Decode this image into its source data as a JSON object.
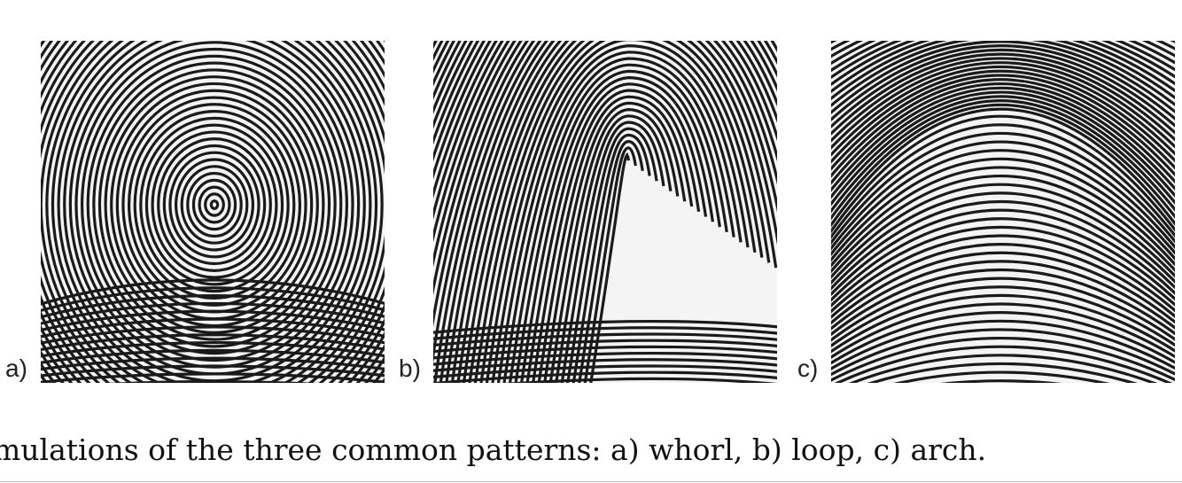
{
  "figure": {
    "panels": [
      {
        "label": "a)",
        "pattern": "whorl"
      },
      {
        "label": "b)",
        "pattern": "loop"
      },
      {
        "label": "c)",
        "pattern": "arch"
      }
    ],
    "caption": "mulations of the three common patterns: a) whorl, b) loop, c) arch."
  },
  "colors": {
    "ridge": "#1a1a1a",
    "valley": "#f4f4f4"
  }
}
